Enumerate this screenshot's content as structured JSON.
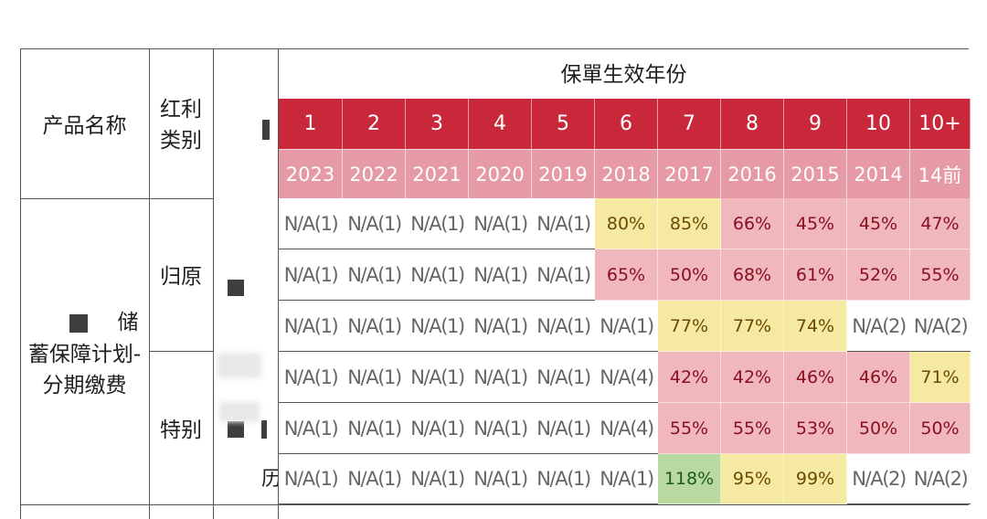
{
  "table": {
    "title": "保單生效年份",
    "col_product": "产品名称",
    "col_type_line1": "红利",
    "col_type_line2": "类别",
    "product_name_line1": "储",
    "product_name_line2": "蓄保障计划-",
    "product_name_line3": "分期缴费",
    "type_group_1": "归原",
    "type_group_2": "特别",
    "row6_label_fragment": "历",
    "policy_years": [
      "1",
      "2",
      "3",
      "4",
      "5",
      "6",
      "7",
      "8",
      "9",
      "10",
      "10+"
    ],
    "issue_years": [
      "2023",
      "2022",
      "2021",
      "2020",
      "2019",
      "2018",
      "2017",
      "2016",
      "2015",
      "2014",
      "14前"
    ],
    "rows": [
      [
        {
          "v": "N/A(1)",
          "c": "na"
        },
        {
          "v": "N/A(1)",
          "c": "na"
        },
        {
          "v": "N/A(1)",
          "c": "na"
        },
        {
          "v": "N/A(1)",
          "c": "na"
        },
        {
          "v": "N/A(1)",
          "c": "na"
        },
        {
          "v": "80%",
          "c": "y"
        },
        {
          "v": "85%",
          "c": "y"
        },
        {
          "v": "66%",
          "c": "r"
        },
        {
          "v": "45%",
          "c": "r"
        },
        {
          "v": "45%",
          "c": "r"
        },
        {
          "v": "47%",
          "c": "r"
        }
      ],
      [
        {
          "v": "N/A(1)",
          "c": "na"
        },
        {
          "v": "N/A(1)",
          "c": "na"
        },
        {
          "v": "N/A(1)",
          "c": "na"
        },
        {
          "v": "N/A(1)",
          "c": "na"
        },
        {
          "v": "N/A(1)",
          "c": "na"
        },
        {
          "v": "65%",
          "c": "r"
        },
        {
          "v": "50%",
          "c": "r"
        },
        {
          "v": "68%",
          "c": "r"
        },
        {
          "v": "61%",
          "c": "r"
        },
        {
          "v": "52%",
          "c": "r"
        },
        {
          "v": "55%",
          "c": "r"
        }
      ],
      [
        {
          "v": "N/A(1)",
          "c": "na"
        },
        {
          "v": "N/A(1)",
          "c": "na"
        },
        {
          "v": "N/A(1)",
          "c": "na"
        },
        {
          "v": "N/A(1)",
          "c": "na"
        },
        {
          "v": "N/A(1)",
          "c": "na"
        },
        {
          "v": "N/A(1)",
          "c": "na"
        },
        {
          "v": "77%",
          "c": "y"
        },
        {
          "v": "77%",
          "c": "y"
        },
        {
          "v": "74%",
          "c": "y"
        },
        {
          "v": "N/A(2)",
          "c": "na"
        },
        {
          "v": "N/A(2)",
          "c": "na"
        }
      ],
      [
        {
          "v": "N/A(1)",
          "c": "na"
        },
        {
          "v": "N/A(1)",
          "c": "na"
        },
        {
          "v": "N/A(1)",
          "c": "na"
        },
        {
          "v": "N/A(1)",
          "c": "na"
        },
        {
          "v": "N/A(1)",
          "c": "na"
        },
        {
          "v": "N/A(4)",
          "c": "na"
        },
        {
          "v": "42%",
          "c": "r"
        },
        {
          "v": "42%",
          "c": "r"
        },
        {
          "v": "46%",
          "c": "r"
        },
        {
          "v": "46%",
          "c": "r"
        },
        {
          "v": "71%",
          "c": "y"
        }
      ],
      [
        {
          "v": "N/A(1)",
          "c": "na"
        },
        {
          "v": "N/A(1)",
          "c": "na"
        },
        {
          "v": "N/A(1)",
          "c": "na"
        },
        {
          "v": "N/A(1)",
          "c": "na"
        },
        {
          "v": "N/A(1)",
          "c": "na"
        },
        {
          "v": "N/A(4)",
          "c": "na"
        },
        {
          "v": "55%",
          "c": "r"
        },
        {
          "v": "55%",
          "c": "r"
        },
        {
          "v": "53%",
          "c": "r"
        },
        {
          "v": "50%",
          "c": "r"
        },
        {
          "v": "50%",
          "c": "r"
        }
      ],
      [
        {
          "v": "N/A(1)",
          "c": "na"
        },
        {
          "v": "N/A(1)",
          "c": "na"
        },
        {
          "v": "N/A(1)",
          "c": "na"
        },
        {
          "v": "N/A(1)",
          "c": "na"
        },
        {
          "v": "N/A(1)",
          "c": "na"
        },
        {
          "v": "N/A(1)",
          "c": "na"
        },
        {
          "v": "118%",
          "c": "g"
        },
        {
          "v": "95%",
          "c": "y"
        },
        {
          "v": "99%",
          "c": "y"
        },
        {
          "v": "N/A(2)",
          "c": "na"
        },
        {
          "v": "N/A(2)",
          "c": "na"
        }
      ]
    ]
  },
  "colors": {
    "header_red": "#c8283a",
    "year_pink": "#e69aa5",
    "cell_red": "#f0b7bd",
    "cell_yellow": "#f6e9a2",
    "cell_green": "#b8d9a0",
    "na_bg": "#ffffff"
  }
}
